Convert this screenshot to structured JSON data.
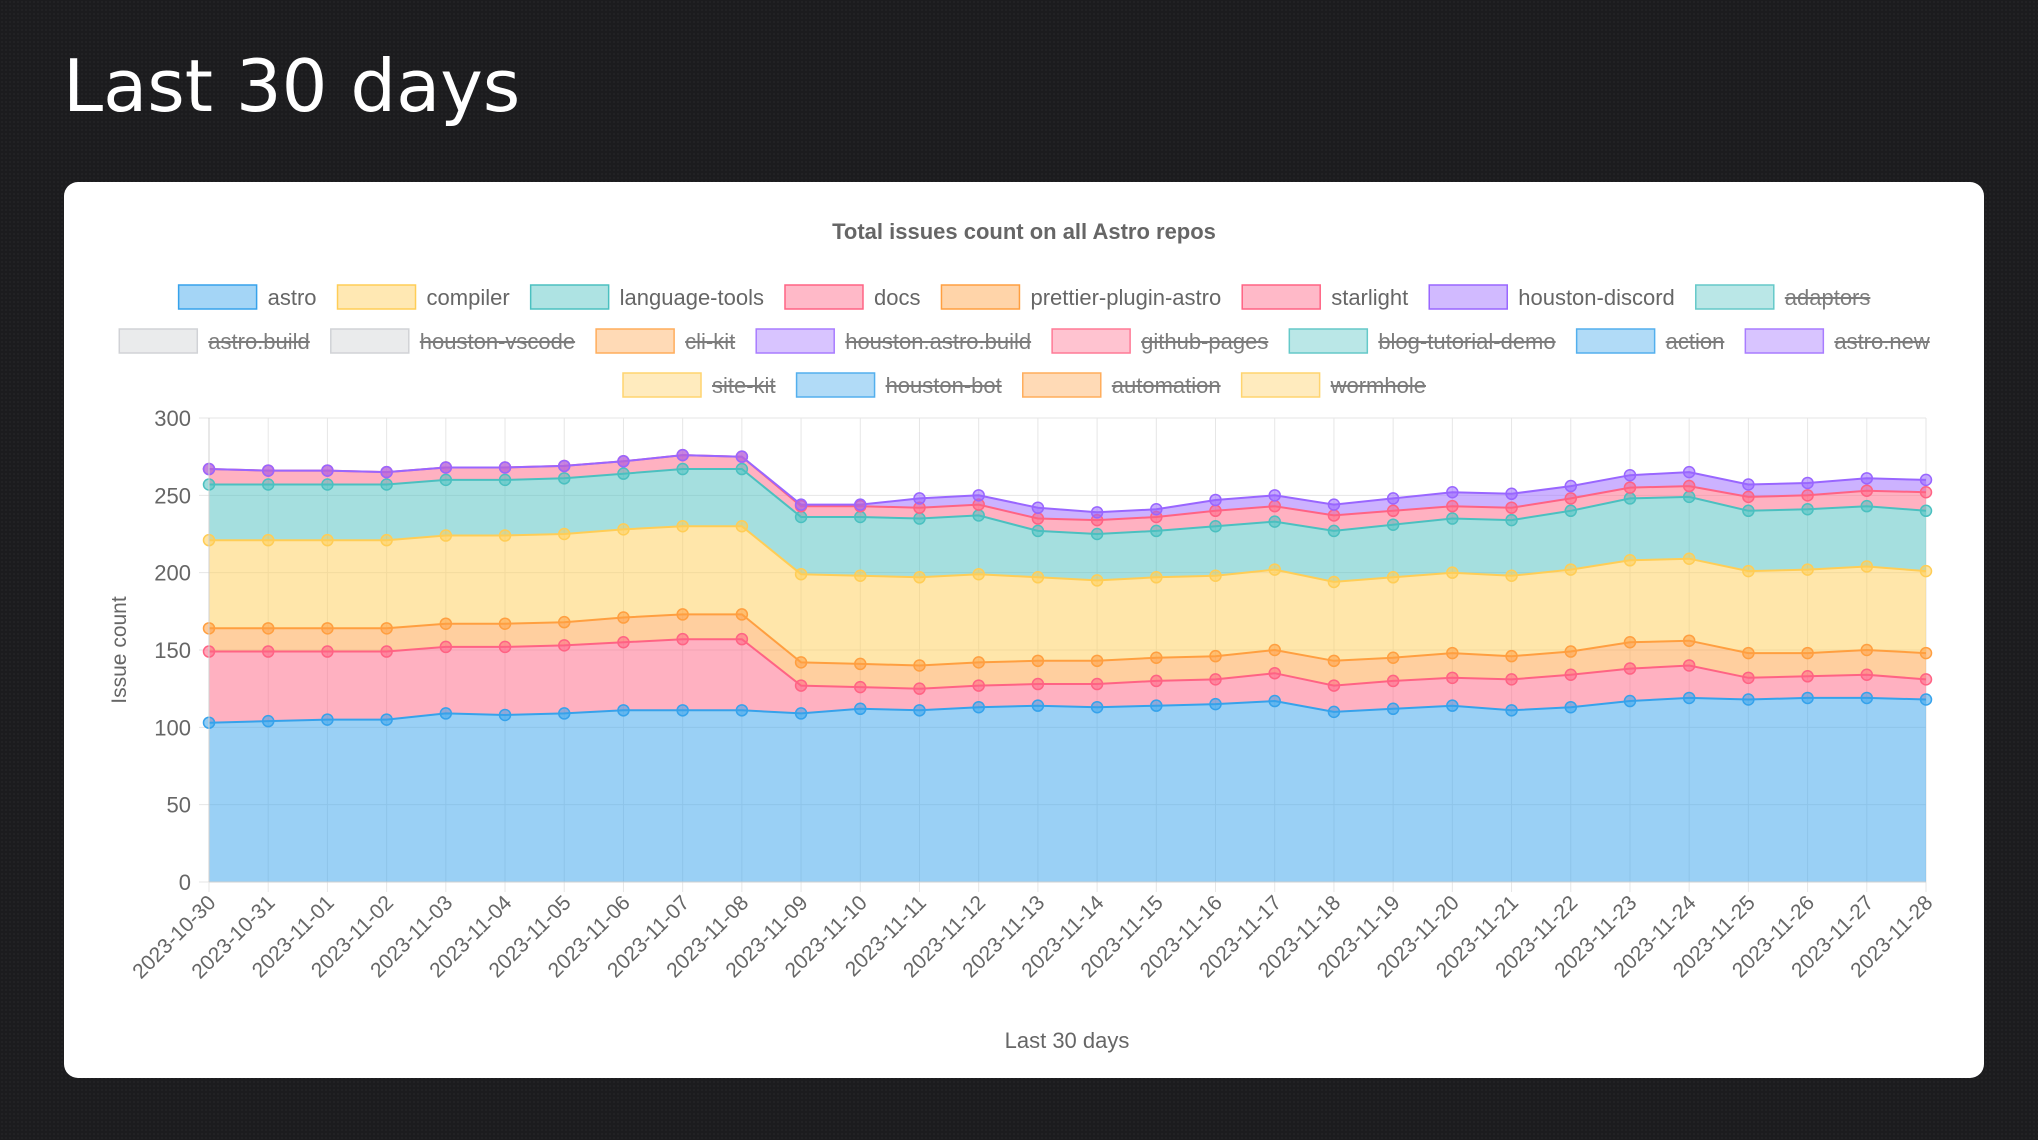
{
  "page": {
    "title": "Last 30 days"
  },
  "chart_data": {
    "type": "area",
    "stacked": true,
    "title": "Total issues count on all Astro repos",
    "xlabel": "Last 30 days",
    "ylabel": "Issue count",
    "ylim": [
      0,
      300
    ],
    "yticks": [
      0,
      50,
      100,
      150,
      200,
      250,
      300
    ],
    "grid": true,
    "legend_position": "top",
    "x": [
      "2023-10-30",
      "2023-10-31",
      "2023-11-01",
      "2023-11-02",
      "2023-11-03",
      "2023-11-04",
      "2023-11-05",
      "2023-11-06",
      "2023-11-07",
      "2023-11-08",
      "2023-11-09",
      "2023-11-10",
      "2023-11-11",
      "2023-11-12",
      "2023-11-13",
      "2023-11-14",
      "2023-11-15",
      "2023-11-16",
      "2023-11-17",
      "2023-11-18",
      "2023-11-19",
      "2023-11-20",
      "2023-11-21",
      "2023-11-22",
      "2023-11-23",
      "2023-11-24",
      "2023-11-25",
      "2023-11-26",
      "2023-11-27",
      "2023-11-28"
    ],
    "legend": [
      {
        "name": "astro",
        "color": "#36a2eb",
        "hidden": false
      },
      {
        "name": "compiler",
        "color": "#ffcd56",
        "hidden": false
      },
      {
        "name": "language-tools",
        "color": "#4bc0c0",
        "hidden": false
      },
      {
        "name": "docs",
        "color": "#ff6384",
        "hidden": false
      },
      {
        "name": "prettier-plugin-astro",
        "color": "#ff9f40",
        "hidden": false
      },
      {
        "name": "starlight",
        "color": "#ff6384",
        "hidden": false
      },
      {
        "name": "houston-discord",
        "color": "#9966ff",
        "hidden": false
      },
      {
        "name": "adaptors",
        "color": "#4bc0c0",
        "hidden": true
      },
      {
        "name": "astro.build",
        "color": "#c9cbcf",
        "hidden": true
      },
      {
        "name": "houston-vscode",
        "color": "#c9cbcf",
        "hidden": true
      },
      {
        "name": "cli-kit",
        "color": "#ff9f40",
        "hidden": true
      },
      {
        "name": "houston.astro.build",
        "color": "#9966ff",
        "hidden": true
      },
      {
        "name": "github-pages",
        "color": "#ff6384",
        "hidden": true
      },
      {
        "name": "blog-tutorial-demo",
        "color": "#4bc0c0",
        "hidden": true
      },
      {
        "name": "action",
        "color": "#36a2eb",
        "hidden": true
      },
      {
        "name": "astro.new",
        "color": "#9966ff",
        "hidden": true
      },
      {
        "name": "site-kit",
        "color": "#ffcd56",
        "hidden": true
      },
      {
        "name": "houston-bot",
        "color": "#36a2eb",
        "hidden": true
      },
      {
        "name": "automation",
        "color": "#ff9f40",
        "hidden": true
      },
      {
        "name": "wormhole",
        "color": "#ffcd56",
        "hidden": true
      }
    ],
    "series": [
      {
        "name": "astro",
        "color": "#36a2eb",
        "stack_top": [
          103,
          104,
          105,
          105,
          109,
          108,
          109,
          111,
          111,
          111,
          109,
          112,
          111,
          113,
          114,
          113,
          114,
          115,
          117,
          110,
          112,
          114,
          111,
          113,
          117,
          119,
          118,
          119,
          119,
          118
        ]
      },
      {
        "name": "docs",
        "color": "#ff6384",
        "stack_top": [
          149,
          149,
          149,
          149,
          152,
          152,
          153,
          155,
          157,
          157,
          127,
          126,
          125,
          127,
          128,
          128,
          130,
          131,
          135,
          127,
          130,
          132,
          131,
          134,
          138,
          140,
          132,
          133,
          134,
          131
        ]
      },
      {
        "name": "prettier-plugin-astro",
        "color": "#ff9f40",
        "stack_top": [
          164,
          164,
          164,
          164,
          167,
          167,
          168,
          171,
          173,
          173,
          142,
          141,
          140,
          142,
          143,
          143,
          145,
          146,
          150,
          143,
          145,
          148,
          146,
          149,
          155,
          156,
          148,
          148,
          150,
          148
        ]
      },
      {
        "name": "compiler",
        "color": "#ffcd56",
        "stack_top": [
          221,
          221,
          221,
          221,
          224,
          224,
          225,
          228,
          230,
          230,
          199,
          198,
          197,
          199,
          197,
          195,
          197,
          198,
          202,
          194,
          197,
          200,
          198,
          202,
          208,
          209,
          201,
          202,
          204,
          201
        ]
      },
      {
        "name": "language-tools",
        "color": "#4bc0c0",
        "stack_top": [
          257,
          257,
          257,
          257,
          260,
          260,
          261,
          264,
          267,
          267,
          236,
          236,
          235,
          237,
          227,
          225,
          227,
          230,
          233,
          227,
          231,
          235,
          234,
          240,
          248,
          249,
          240,
          241,
          243,
          240
        ]
      },
      {
        "name": "starlight",
        "color": "#ff6384",
        "stack_top": [
          267,
          266,
          266,
          265,
          268,
          268,
          269,
          272,
          276,
          275,
          243,
          243,
          242,
          244,
          235,
          234,
          236,
          240,
          243,
          237,
          240,
          243,
          242,
          248,
          255,
          256,
          249,
          250,
          253,
          252
        ]
      },
      {
        "name": "houston-discord",
        "color": "#9966ff",
        "stack_top": [
          267,
          266,
          266,
          265,
          268,
          268,
          269,
          272,
          276,
          275,
          244,
          244,
          248,
          250,
          242,
          239,
          241,
          247,
          250,
          244,
          248,
          252,
          251,
          256,
          263,
          265,
          257,
          258,
          261,
          260
        ]
      }
    ]
  }
}
